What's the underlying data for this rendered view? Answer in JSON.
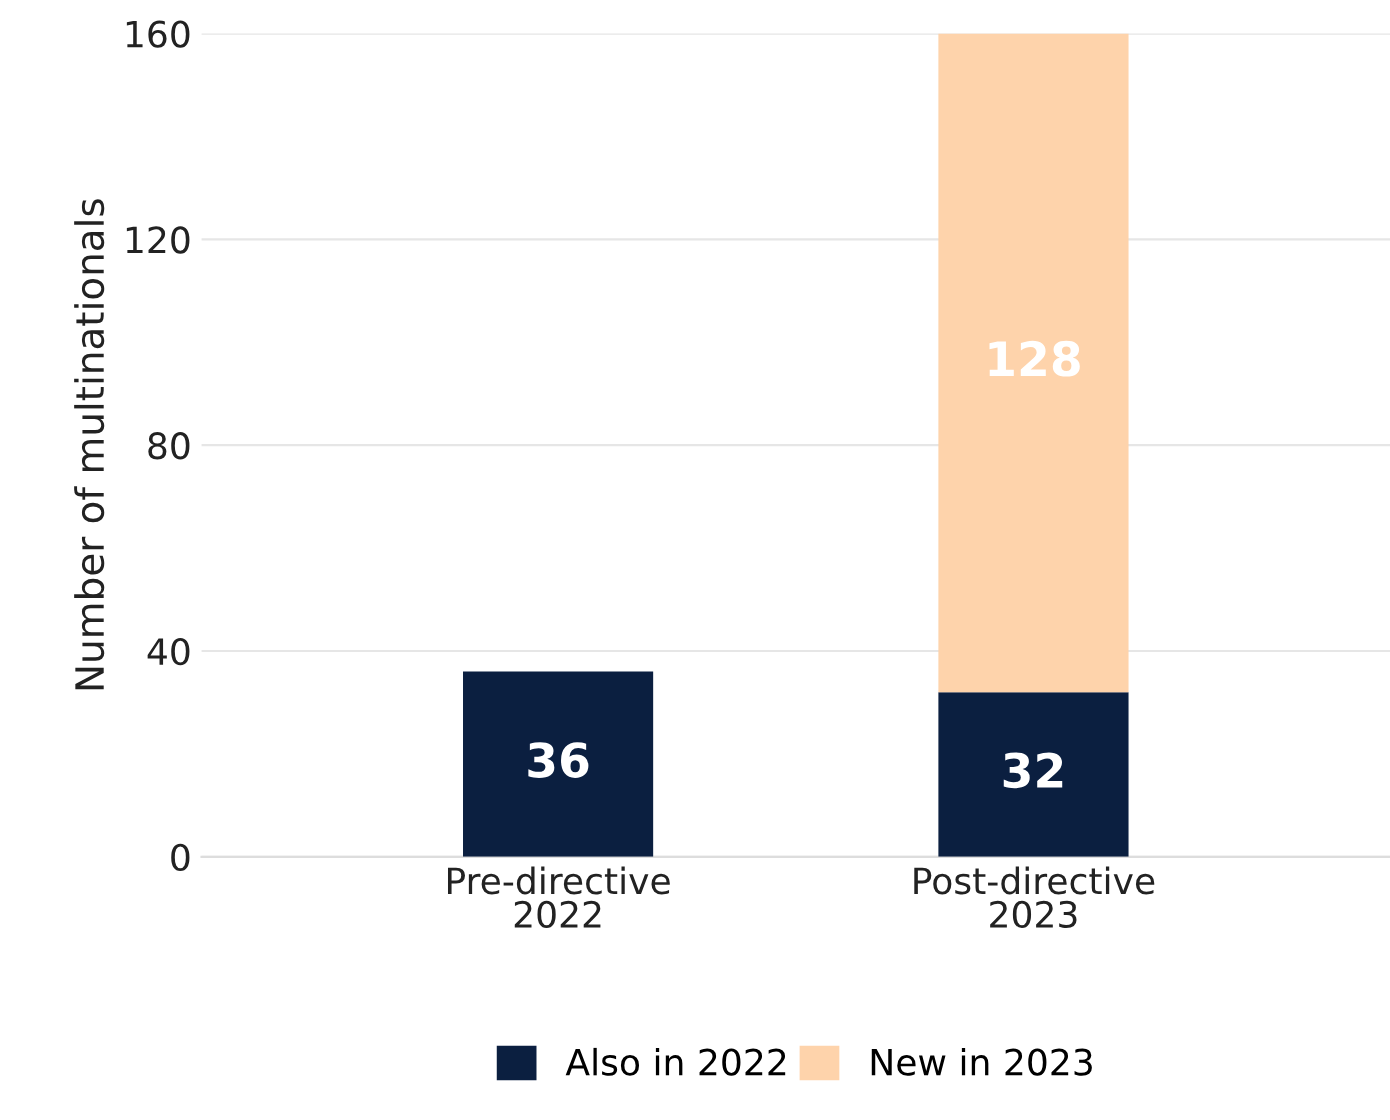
{
  "chart_data": {
    "type": "bar",
    "stacked": true,
    "ylabel": "Number of multinationals",
    "categories": [
      "Pre-directive\n2022",
      "Post-directive\n2023"
    ],
    "series": [
      {
        "name": "Also in 2022",
        "color": "#0b1f40",
        "values": [
          36,
          32
        ]
      },
      {
        "name": "New in 2023",
        "color": "#fed3ab",
        "values": [
          null,
          128
        ]
      }
    ],
    "ylim": [
      0,
      160
    ],
    "yticks": [
      0,
      40,
      80,
      120,
      160
    ],
    "grid": "y",
    "legend": "bottom",
    "data_labels": true
  }
}
